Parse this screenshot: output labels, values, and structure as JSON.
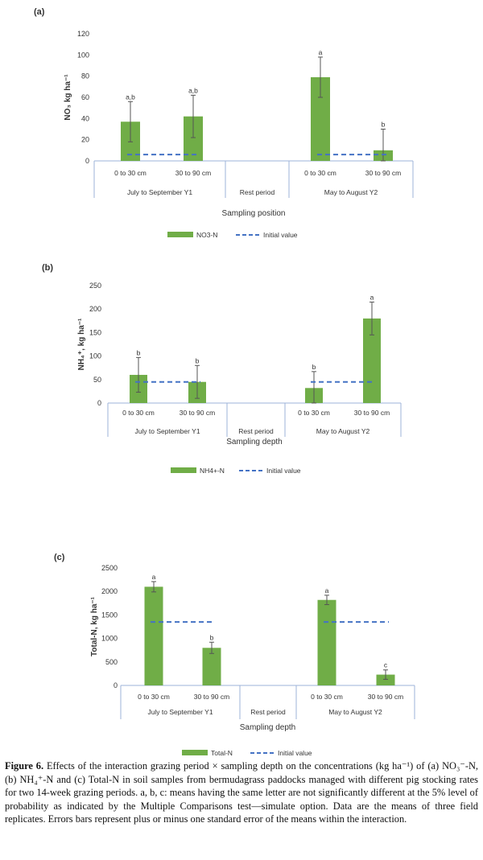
{
  "figure": {
    "caption_label": "Figure 6.",
    "caption_text": " Effects of the interaction grazing period × sampling depth on the concentrations (kg ha⁻¹) of (a) NO₃⁻-N, (b) NH₄⁺-N and (c) Total-N in soil samples from bermudagrass paddocks managed with different pig stocking rates for two 14-week grazing periods. a, b, c: means having the same letter are not significantly different at the 5% level of probability as indicated by the Multiple Comparisons test—simulate option. Data are the means of three field replicates. Errors bars represent plus or minus one standard error of the means within the interaction."
  },
  "colors": {
    "bar": "#70ad47",
    "initial": "#4472c4",
    "axis": "#8ea9db"
  },
  "chart_data": [
    {
      "panel": "(a)",
      "type": "bar",
      "categories": [
        "0 to 30 cm",
        "30 to 90 cm",
        "0 to 30 cm",
        "30 to 90 cm"
      ],
      "groups": [
        "July to September Y1",
        "Rest period",
        "May to August Y2"
      ],
      "values": [
        37,
        42,
        79,
        10
      ],
      "errors": [
        19,
        20,
        19,
        20
      ],
      "letters": [
        "a,b",
        "a,b",
        "a",
        "b"
      ],
      "initial_value": 6,
      "ylabel": "NO₃ kg ha⁻¹",
      "xlabel": "Sampling position",
      "yticks": [
        0,
        20,
        40,
        60,
        80,
        100,
        120
      ],
      "ylim": [
        0,
        120
      ],
      "legend": [
        "NO3-N",
        "Initial value"
      ]
    },
    {
      "panel": "(b)",
      "type": "bar",
      "categories": [
        "0 to 30 cm",
        "30 to 90 cm",
        "0 to 30 cm",
        "30 to 90 cm"
      ],
      "groups": [
        "July to September Y1",
        "Rest period",
        "May to August Y2"
      ],
      "values": [
        60,
        45,
        32,
        180
      ],
      "errors": [
        37,
        35,
        35,
        35
      ],
      "letters": [
        "b",
        "b",
        "b",
        "a"
      ],
      "initial_value": 45,
      "ylabel": "NH₄⁺, kg ha⁻¹",
      "xlabel": "Sampling depth",
      "yticks": [
        0,
        50,
        100,
        150,
        200,
        250
      ],
      "ylim": [
        0,
        250
      ],
      "legend": [
        "NH4+-N",
        "Initial value"
      ]
    },
    {
      "panel": "(c)",
      "type": "bar",
      "categories": [
        "0 to 30 cm",
        "30 to 90 cm",
        "0 to 30 cm",
        "30 to 90 cm"
      ],
      "groups": [
        "July to September Y1",
        "Rest period",
        "May to August Y2"
      ],
      "values": [
        2100,
        800,
        1820,
        230
      ],
      "errors": [
        110,
        120,
        100,
        100
      ],
      "letters": [
        "a",
        "b",
        "a",
        "c"
      ],
      "initial_value": 1350,
      "ylabel": "Total-N, kg ha⁻¹",
      "xlabel": "Sampling depth",
      "yticks": [
        0,
        500,
        1000,
        1500,
        2000,
        2500
      ],
      "ylim": [
        0,
        2500
      ],
      "legend": [
        "Total-N",
        "Initial value"
      ]
    }
  ]
}
